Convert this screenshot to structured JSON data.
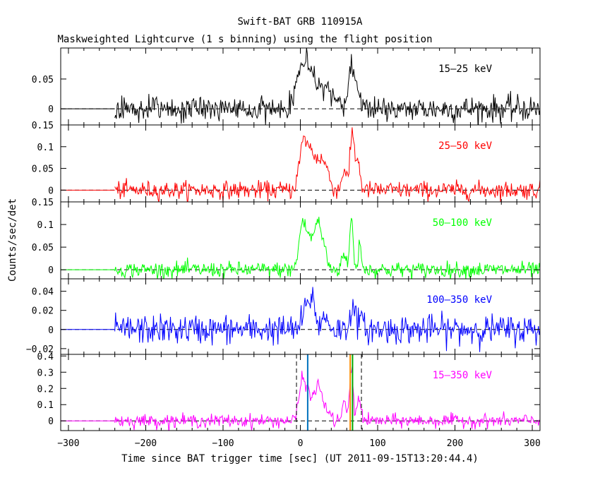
{
  "title": "Swift-BAT GRB 110915A",
  "subtitle": "Maskweighted Lightcurve (1 s binning) using the flight position",
  "chart_data": {
    "type": "line",
    "title": "Swift-BAT GRB 110915A",
    "subtitle": "Maskweighted Lightcurve (1 s binning) using the flight position",
    "xlabel": "Time since BAT trigger time [sec] (UT 2011-09-15T13:20:44.4)",
    "ylabel": "Counts/sec/det",
    "xlim": [
      -310,
      310
    ],
    "xticks": [
      -300,
      -200,
      -100,
      0,
      100,
      200,
      300
    ],
    "data_start": -240,
    "data_end": 310,
    "grid": false,
    "reference_line_y": 0,
    "panels": [
      {
        "band": "15-25 keV",
        "label": "15–25 keV",
        "color": "#000000",
        "ylim": [
          -0.027,
          0.102
        ],
        "yticks": [
          0,
          0.05
        ],
        "ytick_labels": [
          "0",
          "0.05"
        ],
        "noise_sigma": 0.011,
        "peaks": [
          {
            "t": -2,
            "amp": 0.042,
            "width": 6
          },
          {
            "t": 8,
            "amp": 0.05,
            "width": 8
          },
          {
            "t": 22,
            "amp": 0.035,
            "width": 10
          },
          {
            "t": 40,
            "amp": 0.015,
            "width": 8
          },
          {
            "t": 62,
            "amp": 0.03,
            "width": 4
          },
          {
            "t": 67,
            "amp": 0.06,
            "width": 3
          },
          {
            "t": 74,
            "amp": 0.03,
            "width": 4
          }
        ]
      },
      {
        "band": "25-50 keV",
        "label": "25–50 keV",
        "color": "#ff0000",
        "ylim": [
          -0.027,
          0.15
        ],
        "yticks": [
          0,
          0.05,
          0.1,
          0.15
        ],
        "ytick_labels": [
          "0",
          "0.05",
          "0.1",
          "0.15"
        ],
        "noise_sigma": 0.01,
        "peaks": [
          {
            "t": 3,
            "amp": 0.085,
            "width": 5
          },
          {
            "t": 12,
            "amp": 0.075,
            "width": 6
          },
          {
            "t": 24,
            "amp": 0.055,
            "width": 6
          },
          {
            "t": 33,
            "amp": 0.04,
            "width": 5
          },
          {
            "t": 57,
            "amp": 0.05,
            "width": 3
          },
          {
            "t": 67,
            "amp": 0.13,
            "width": 2.5
          },
          {
            "t": 74,
            "amp": 0.07,
            "width": 3
          }
        ]
      },
      {
        "band": "50-100 keV",
        "label": "50–100 keV",
        "color": "#00ff00",
        "ylim": [
          -0.02,
          0.15
        ],
        "yticks": [
          0,
          0.05,
          0.1,
          0.15
        ],
        "ytick_labels": [
          "0",
          "0.05",
          "0.1",
          "0.15"
        ],
        "noise_sigma": 0.0085,
        "peaks": [
          {
            "t": 2,
            "amp": 0.09,
            "width": 4
          },
          {
            "t": 11,
            "amp": 0.07,
            "width": 5
          },
          {
            "t": 22,
            "amp": 0.095,
            "width": 4
          },
          {
            "t": 30,
            "amp": 0.05,
            "width": 4
          },
          {
            "t": 56,
            "amp": 0.04,
            "width": 2.5
          },
          {
            "t": 66,
            "amp": 0.12,
            "width": 2
          },
          {
            "t": 77,
            "amp": 0.06,
            "width": 2
          }
        ]
      },
      {
        "band": "100-350 keV",
        "label": "100–350 keV",
        "color": "#0000ff",
        "ylim": [
          -0.026,
          0.053
        ],
        "yticks": [
          -0.02,
          0,
          0.02,
          0.04
        ],
        "ytick_labels": [
          "−0.02",
          "0",
          "0.02",
          "0.04"
        ],
        "noise_sigma": 0.0075,
        "peaks": [
          {
            "t": 6,
            "amp": 0.018,
            "width": 4
          },
          {
            "t": 15,
            "amp": 0.033,
            "width": 4
          },
          {
            "t": 32,
            "amp": 0.012,
            "width": 5
          },
          {
            "t": 67,
            "amp": 0.025,
            "width": 3
          },
          {
            "t": 77,
            "amp": 0.012,
            "width": 3
          }
        ]
      },
      {
        "band": "15-350 keV",
        "label": "15–350 keV",
        "color": "#ff00ff",
        "ylim": [
          -0.06,
          0.41
        ],
        "yticks": [
          0,
          0.1,
          0.2,
          0.3,
          0.4
        ],
        "ytick_labels": [
          "0",
          "0.1",
          "0.2",
          "0.3",
          "0.4"
        ],
        "noise_sigma": 0.02,
        "peaks": [
          {
            "t": 2,
            "amp": 0.22,
            "width": 4
          },
          {
            "t": 11,
            "amp": 0.17,
            "width": 5
          },
          {
            "t": 23,
            "amp": 0.2,
            "width": 4
          },
          {
            "t": 32,
            "amp": 0.08,
            "width": 5
          },
          {
            "t": 57,
            "amp": 0.1,
            "width": 3
          },
          {
            "t": 66,
            "amp": 0.32,
            "width": 2.2
          },
          {
            "t": 76,
            "amp": 0.15,
            "width": 2.5
          }
        ]
      }
    ],
    "markers": [
      {
        "t": -5,
        "color": "#000000",
        "style": "dashed"
      },
      {
        "t": 9.5,
        "color": "#0072bd",
        "style": "solid"
      },
      {
        "t": 64.5,
        "color": "#ff8c00",
        "style": "solid"
      },
      {
        "t": 67.5,
        "color": "#00aa00",
        "style": "solid"
      },
      {
        "t": 79,
        "color": "#000000",
        "style": "dashed"
      }
    ]
  }
}
